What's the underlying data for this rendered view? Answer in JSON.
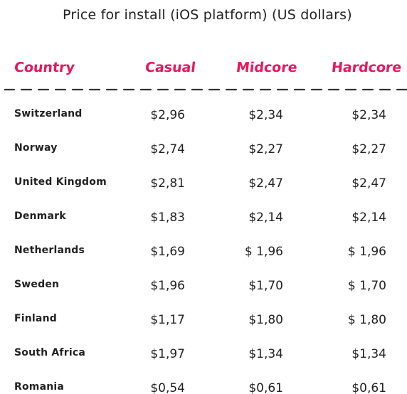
{
  "title": "Price for install (iOS platform) (US dollars)",
  "chart_data": {
    "type": "table",
    "title": "Price for install (iOS platform) (US dollars)",
    "columns": [
      "Country",
      "Casual",
      "Midcore",
      "Hardcore"
    ],
    "rows": [
      {
        "country": "Switzerland",
        "casual": "$2,96",
        "midcore": "$2,34",
        "hardcore": "$2,34"
      },
      {
        "country": "Norway",
        "casual": "$2,74",
        "midcore": "$2,27",
        "hardcore": "$2,27"
      },
      {
        "country": "United Kingdom",
        "casual": "$2,81",
        "midcore": "$2,47",
        "hardcore": "$2,47"
      },
      {
        "country": "Denmark",
        "casual": "$1,83",
        "midcore": "$2,14",
        "hardcore": "$2,14"
      },
      {
        "country": "Netherlands",
        "casual": "$1,69",
        "midcore": "$ 1,96",
        "hardcore": "$ 1,96"
      },
      {
        "country": "Sweden",
        "casual": "$1,96",
        "midcore": "$1,70",
        "hardcore": "$ 1,70"
      },
      {
        "country": "Finland",
        "casual": "$1,17",
        "midcore": "$1,80",
        "hardcore": "$ 1,80"
      },
      {
        "country": "South Africa",
        "casual": "$1,97",
        "midcore": "$1,34",
        "hardcore": "$1,34"
      },
      {
        "country": "Romania",
        "casual": "$0,54",
        "midcore": "$0,61",
        "hardcore": "$0,61"
      }
    ]
  },
  "colors": {
    "header": "#e8175d",
    "text": "#222222",
    "divider": "#333333"
  }
}
